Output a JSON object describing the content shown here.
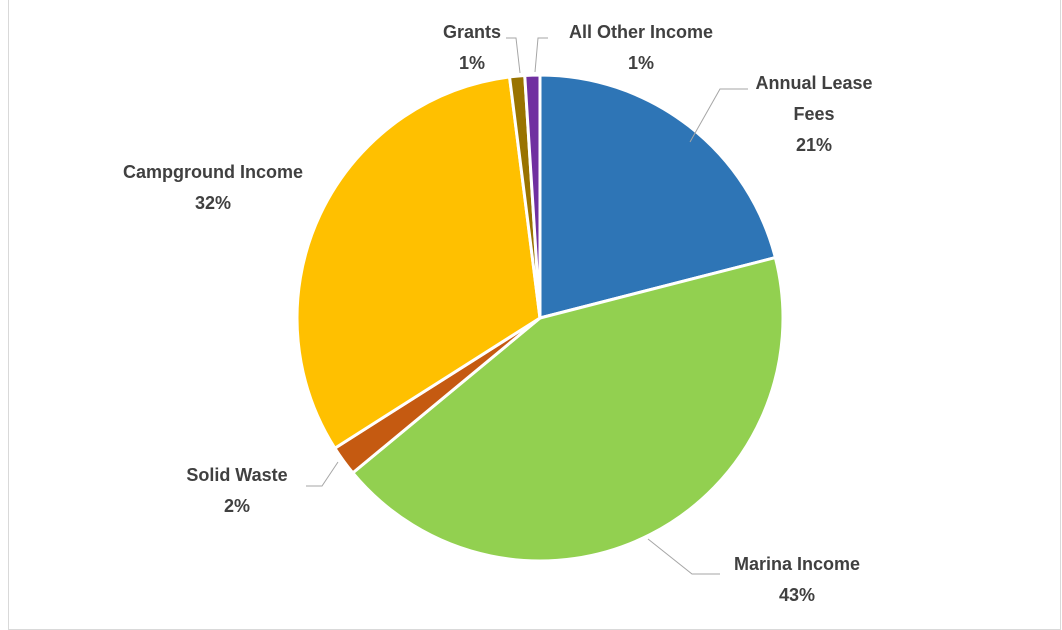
{
  "chart_data": {
    "type": "pie",
    "title": "",
    "start_angle_deg": 0,
    "direction": "clockwise",
    "legend": "none",
    "slices": [
      {
        "name": "Annual Lease Fees",
        "label_lines": [
          "Annual Lease",
          "Fees"
        ],
        "value": 21,
        "percent_label": "21%",
        "color": "#2E75B6"
      },
      {
        "name": "Marina Income",
        "label_lines": [
          "Marina Income"
        ],
        "value": 43,
        "percent_label": "43%",
        "color": "#92D050"
      },
      {
        "name": "Solid Waste",
        "label_lines": [
          "Solid Waste"
        ],
        "value": 2,
        "percent_label": "2%",
        "color": "#C55A11"
      },
      {
        "name": "Campground Income",
        "label_lines": [
          "Campground Income"
        ],
        "value": 32,
        "percent_label": "32%",
        "color": "#FFC000"
      },
      {
        "name": "Grants",
        "label_lines": [
          "Grants"
        ],
        "value": 1,
        "percent_label": "1%",
        "color": "#997300"
      },
      {
        "name": "All Other Income",
        "label_lines": [
          "All Other Income"
        ],
        "value": 1,
        "percent_label": "1%",
        "color": "#7030A0"
      }
    ]
  }
}
